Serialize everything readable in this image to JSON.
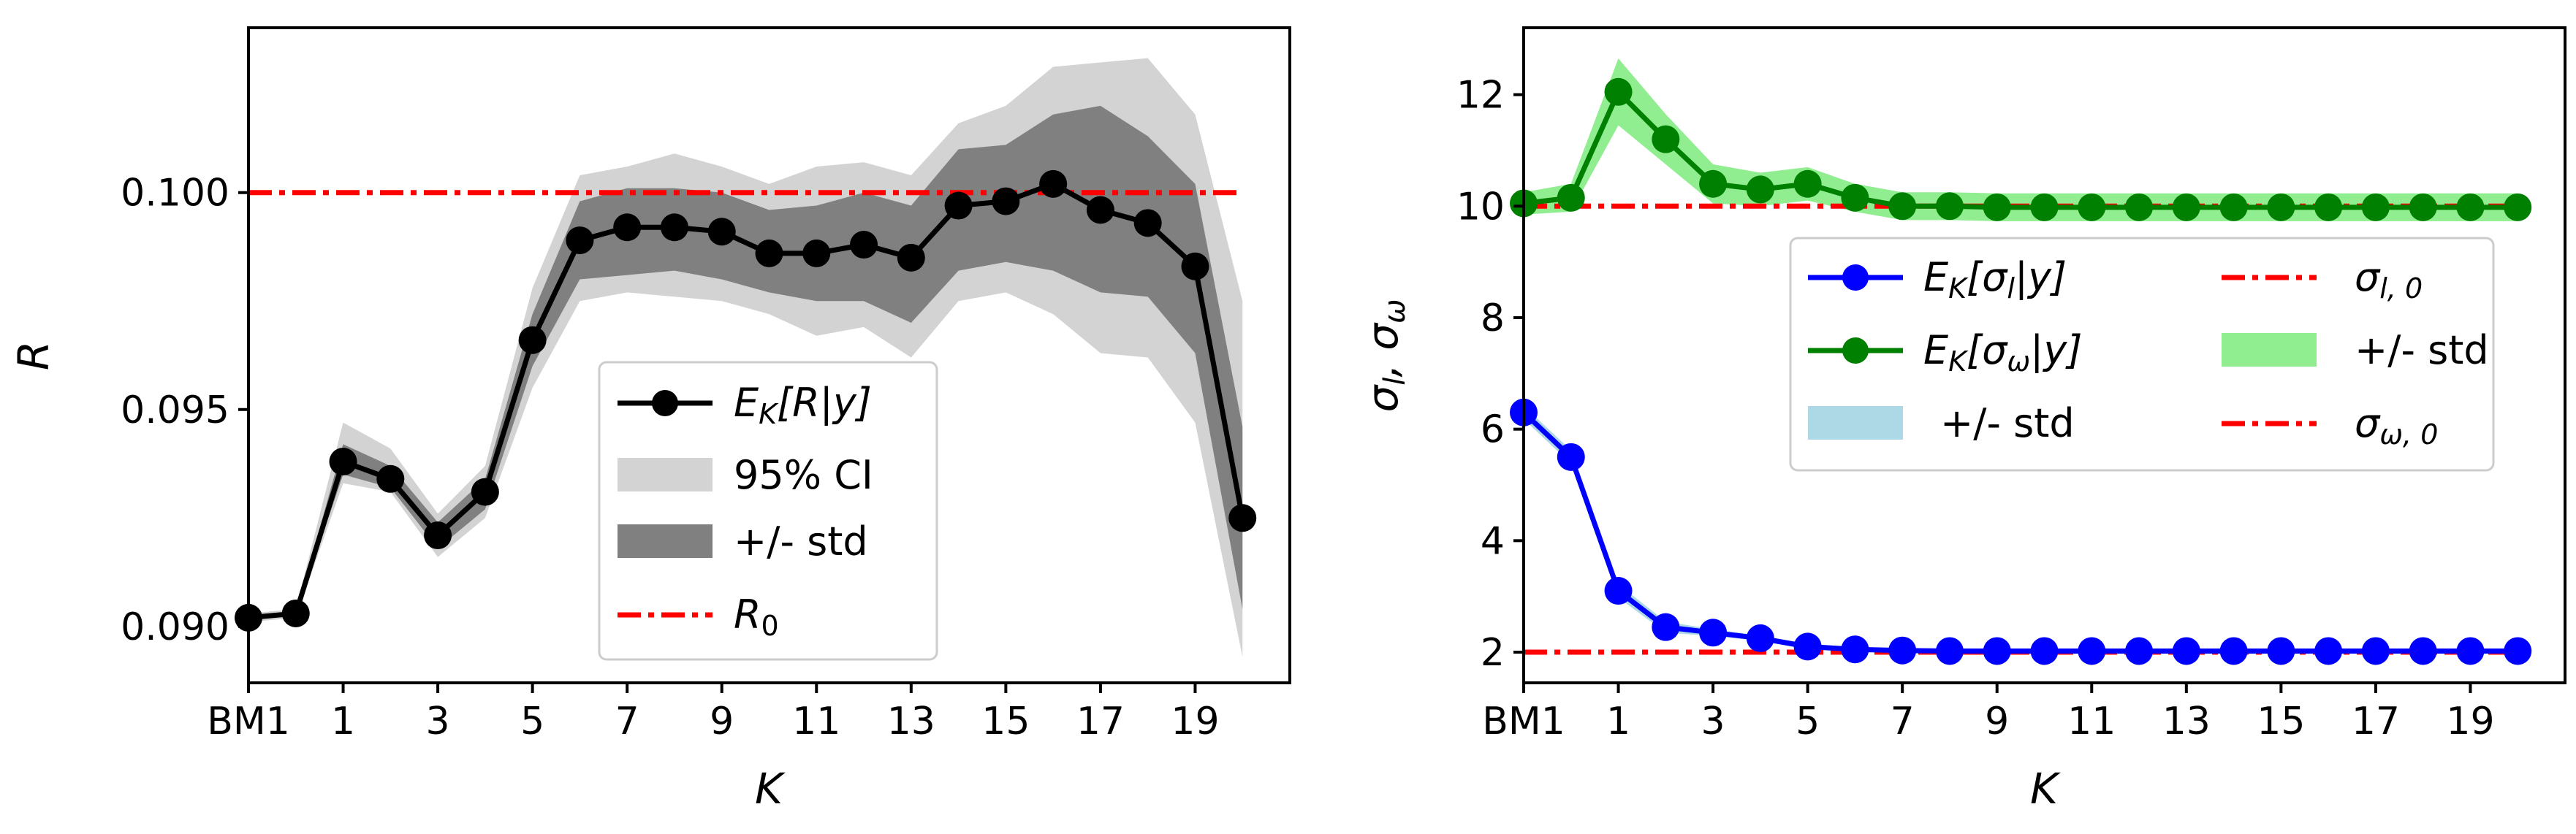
{
  "chart_data": [
    {
      "type": "line",
      "panel": "left",
      "xlabel": "K",
      "ylabel": "R",
      "xlim": [
        -1.0,
        21.0
      ],
      "ylim": [
        0.0887,
        0.1038
      ],
      "categories": [
        "BM1",
        "0",
        "1",
        "2",
        "3",
        "4",
        "5",
        "6",
        "7",
        "8",
        "9",
        "10",
        "11",
        "12",
        "13",
        "14",
        "15",
        "16",
        "17",
        "18",
        "19",
        "20"
      ],
      "x": [
        -1,
        0,
        1,
        2,
        3,
        4,
        5,
        6,
        7,
        8,
        9,
        10,
        11,
        12,
        13,
        14,
        15,
        16,
        17,
        18,
        19,
        20
      ],
      "xticks": [
        {
          "value": -1,
          "label": "BM1"
        },
        {
          "value": 1,
          "label": "1"
        },
        {
          "value": 3,
          "label": "3"
        },
        {
          "value": 5,
          "label": "5"
        },
        {
          "value": 7,
          "label": "7"
        },
        {
          "value": 9,
          "label": "9"
        },
        {
          "value": 11,
          "label": "11"
        },
        {
          "value": 13,
          "label": "13"
        },
        {
          "value": 15,
          "label": "15"
        },
        {
          "value": 17,
          "label": "17"
        },
        {
          "value": 19,
          "label": "19"
        }
      ],
      "yticks": [
        {
          "value": 0.09,
          "label": "0.090"
        },
        {
          "value": 0.095,
          "label": "0.095"
        },
        {
          "value": 0.1,
          "label": "0.100"
        }
      ],
      "series": [
        {
          "name": "E_K[R|y]",
          "color": "#000000",
          "values": [
            0.0902,
            0.0903,
            0.0938,
            0.0934,
            0.0921,
            0.0931,
            0.0966,
            0.0989,
            0.0992,
            0.0992,
            0.0991,
            0.0986,
            0.0986,
            0.0988,
            0.0985,
            0.0997,
            0.0998,
            0.1002,
            0.0996,
            0.0993,
            0.0983,
            0.0925
          ]
        }
      ],
      "bands": [
        {
          "name": "95% CI",
          "color": "#d3d3d3",
          "lower": [
            0.0901,
            0.0902,
            0.0933,
            0.0931,
            0.0916,
            0.0925,
            0.0955,
            0.0975,
            0.0977,
            0.0976,
            0.0975,
            0.0972,
            0.0967,
            0.0969,
            0.0962,
            0.0975,
            0.0977,
            0.0972,
            0.0963,
            0.0962,
            0.0947,
            0.0893
          ],
          "upper": [
            0.0903,
            0.0904,
            0.0947,
            0.0941,
            0.0926,
            0.0937,
            0.0978,
            0.1004,
            0.1006,
            0.1009,
            0.1006,
            0.1002,
            0.1006,
            0.1007,
            0.1004,
            0.1016,
            0.102,
            0.1029,
            0.103,
            0.1031,
            0.1018,
            0.0975
          ]
        },
        {
          "name": "+/- std",
          "color": "#808080",
          "lower": [
            0.0902,
            0.0903,
            0.0935,
            0.0932,
            0.0918,
            0.0927,
            0.096,
            0.098,
            0.0981,
            0.0982,
            0.098,
            0.0977,
            0.0975,
            0.0975,
            0.097,
            0.0982,
            0.0984,
            0.0982,
            0.0977,
            0.0976,
            0.0963,
            0.0904
          ],
          "upper": [
            0.0902,
            0.0903,
            0.0942,
            0.0937,
            0.0924,
            0.0934,
            0.0972,
            0.0998,
            0.1001,
            0.1001,
            0.1,
            0.0996,
            0.0997,
            0.1,
            0.0997,
            0.101,
            0.1011,
            0.1018,
            0.102,
            0.1013,
            0.1002,
            0.0946
          ]
        }
      ],
      "reference_lines": [
        {
          "name": "R_0",
          "value": 0.1,
          "color": "#ff0000",
          "style": "dash-dot",
          "x_from": -1,
          "x_to": 20
        }
      ],
      "legend": {
        "position": "lower-right",
        "entries": [
          {
            "label_main": "E",
            "label_sub": "K",
            "label_rest": "[R|y]",
            "kind": "line-marker",
            "color": "#000000"
          },
          {
            "label": "95% CI",
            "kind": "patch",
            "color": "#d3d3d3"
          },
          {
            "label": "+/- std",
            "kind": "patch",
            "color": "#808080"
          },
          {
            "label_main": "R",
            "label_sub": "0",
            "kind": "dashdot",
            "color": "#ff0000"
          }
        ]
      }
    },
    {
      "type": "line",
      "panel": "right",
      "xlabel": "K",
      "ylabel": "σ_l, σ_ω",
      "xlim": [
        -1.0,
        21.0
      ],
      "ylim": [
        1.45,
        13.2
      ],
      "categories": [
        "BM1",
        "0",
        "1",
        "2",
        "3",
        "4",
        "5",
        "6",
        "7",
        "8",
        "9",
        "10",
        "11",
        "12",
        "13",
        "14",
        "15",
        "16",
        "17",
        "18",
        "19",
        "20"
      ],
      "x": [
        -1,
        0,
        1,
        2,
        3,
        4,
        5,
        6,
        7,
        8,
        9,
        10,
        11,
        12,
        13,
        14,
        15,
        16,
        17,
        18,
        19,
        20
      ],
      "xticks": [
        {
          "value": -1,
          "label": "BM1"
        },
        {
          "value": 1,
          "label": "1"
        },
        {
          "value": 3,
          "label": "3"
        },
        {
          "value": 5,
          "label": "5"
        },
        {
          "value": 7,
          "label": "7"
        },
        {
          "value": 9,
          "label": "9"
        },
        {
          "value": 11,
          "label": "11"
        },
        {
          "value": 13,
          "label": "13"
        },
        {
          "value": 15,
          "label": "15"
        },
        {
          "value": 17,
          "label": "17"
        },
        {
          "value": 19,
          "label": "19"
        }
      ],
      "yticks": [
        {
          "value": 2,
          "label": "2"
        },
        {
          "value": 4,
          "label": "4"
        },
        {
          "value": 6,
          "label": "6"
        },
        {
          "value": 8,
          "label": "8"
        },
        {
          "value": 10,
          "label": "10"
        },
        {
          "value": 12,
          "label": "12"
        }
      ],
      "series": [
        {
          "name": "E_K[σ_l|y]",
          "color": "#0000ff",
          "values": [
            6.3,
            5.5,
            3.1,
            2.45,
            2.35,
            2.25,
            2.1,
            2.05,
            2.03,
            2.02,
            2.02,
            2.02,
            2.02,
            2.02,
            2.02,
            2.02,
            2.02,
            2.02,
            2.02,
            2.02,
            2.02,
            2.02
          ],
          "band_name": "+/- std",
          "band_color": "#add8e6",
          "band_halfwidth": [
            0.12,
            0.12,
            0.12,
            0.1,
            0.06,
            0.05,
            0.05,
            0.04,
            0.04,
            0.04,
            0.04,
            0.04,
            0.04,
            0.04,
            0.04,
            0.04,
            0.04,
            0.04,
            0.04,
            0.04,
            0.04,
            0.04
          ]
        },
        {
          "name": "E_K[σ_ω|y]",
          "color": "#008000",
          "values": [
            10.05,
            10.15,
            12.05,
            11.2,
            10.4,
            10.3,
            10.4,
            10.15,
            10.0,
            10.0,
            9.98,
            9.98,
            9.98,
            9.98,
            9.98,
            9.98,
            9.98,
            9.98,
            9.98,
            9.98,
            9.98,
            9.98
          ],
          "band_name": "+/- std",
          "band_color": "#90ee90",
          "band_halfwidth": [
            0.2,
            0.25,
            0.6,
            0.45,
            0.35,
            0.3,
            0.3,
            0.25,
            0.25,
            0.25,
            0.25,
            0.25,
            0.25,
            0.25,
            0.25,
            0.25,
            0.25,
            0.25,
            0.25,
            0.25,
            0.25,
            0.25
          ]
        }
      ],
      "reference_lines": [
        {
          "name": "σ_ω,0",
          "value": 10,
          "color": "#ff0000",
          "style": "dash-dot",
          "x_from": -1,
          "x_to": 20
        },
        {
          "name": "σ_l,0",
          "value": 2,
          "color": "#ff0000",
          "style": "dash-dot",
          "x_from": -1,
          "x_to": 20
        }
      ],
      "legend": {
        "position": "center-right",
        "columns": 2,
        "entries": [
          {
            "label_main": "E",
            "label_sub": "K",
            "label_rest": "[σ",
            "label_sub2": "l",
            "label_end": "|y]",
            "kind": "line-marker",
            "color": "#0000ff"
          },
          {
            "label_main": "E",
            "label_sub": "K",
            "label_rest": "[σ",
            "label_sub2": "ω",
            "label_end": "|y]",
            "kind": "line-marker",
            "color": "#008000"
          },
          {
            "label": "+/- std",
            "kind": "patch",
            "color": "#add8e6"
          },
          {
            "label_main": "σ",
            "label_sub": "l, 0",
            "kind": "dashdot",
            "color": "#ff0000"
          },
          {
            "label": "+/- std",
            "kind": "patch",
            "color": "#90ee90"
          },
          {
            "label_main": "σ",
            "label_sub": "ω, 0",
            "kind": "dashdot",
            "color": "#ff0000"
          }
        ]
      }
    }
  ]
}
